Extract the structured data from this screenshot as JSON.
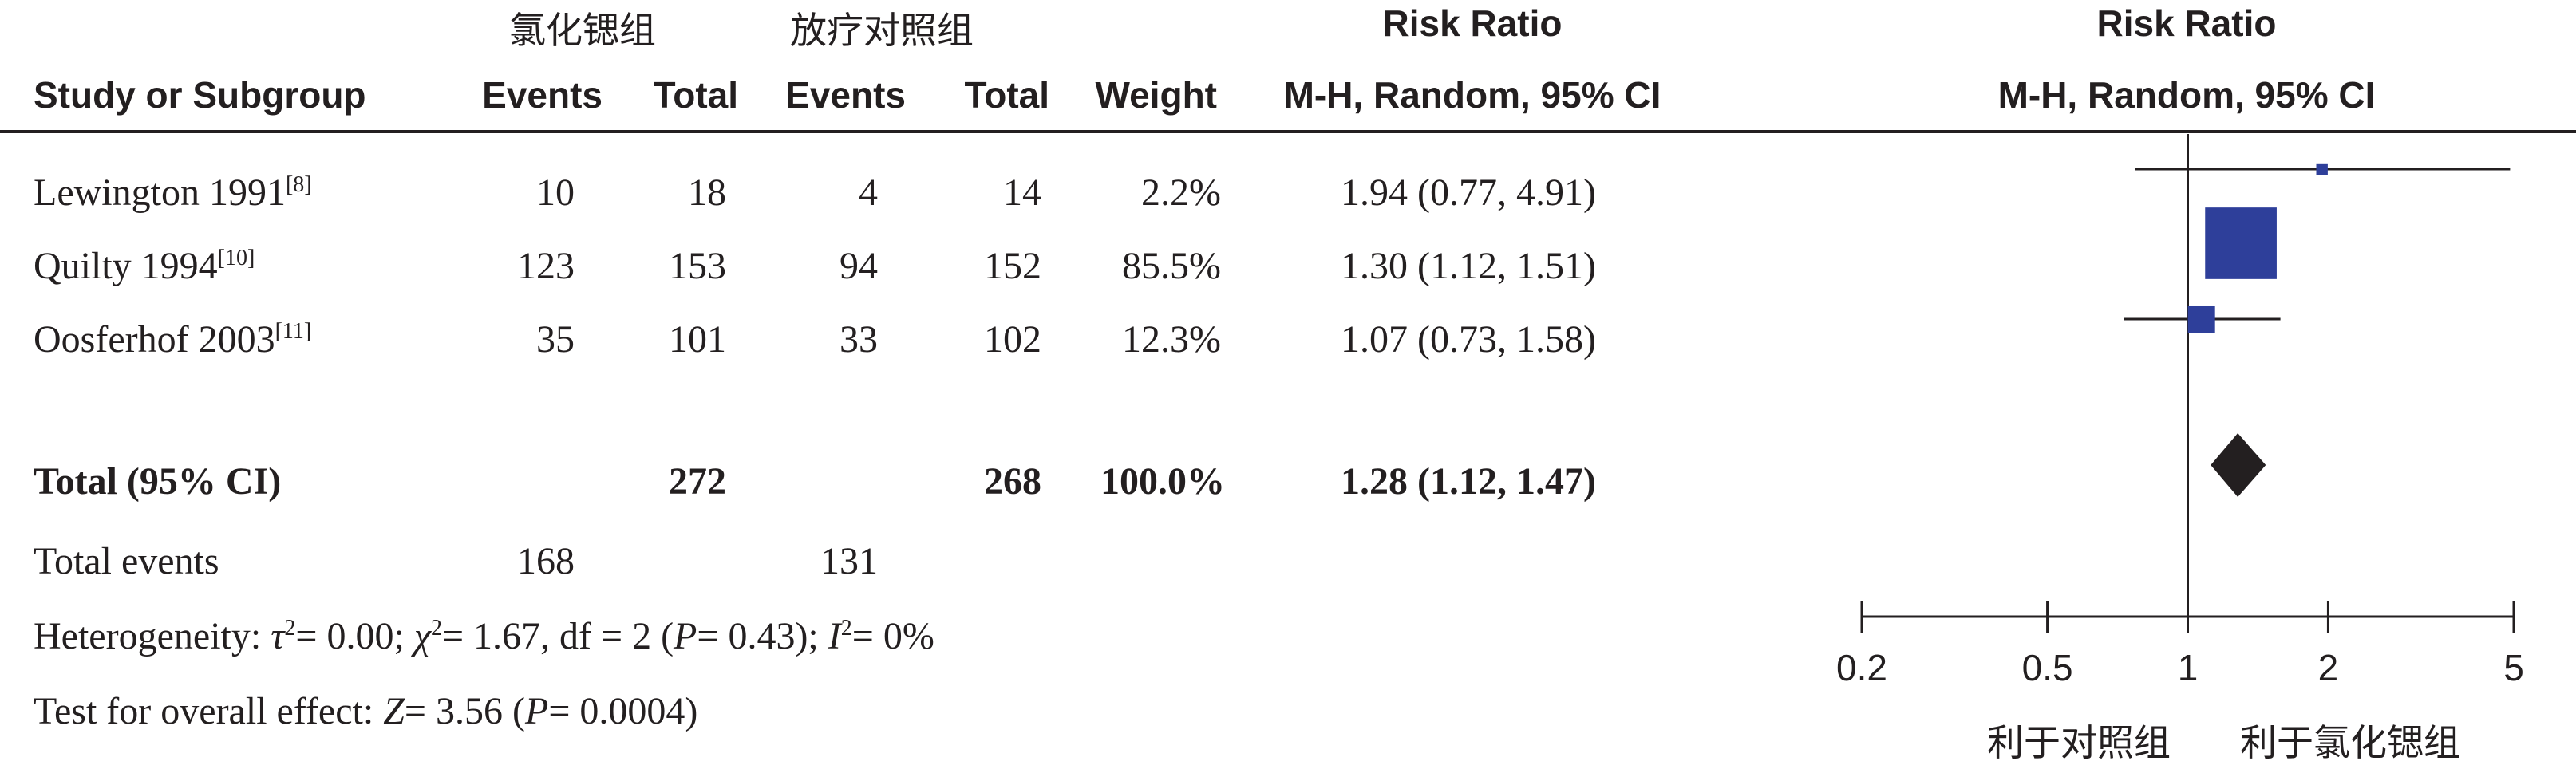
{
  "header": {
    "group1": "氯化锶组",
    "group2": "放疗对照组",
    "study_col": "Study or Subgroup",
    "events1": "Events",
    "total1": "Total",
    "events2": "Events",
    "total2": "Total",
    "weight": "Weight",
    "rr_title": "Risk Ratio",
    "rr_method": "M-H, Random, 95% CI",
    "plot_title": "Risk Ratio",
    "plot_method": "M-H, Random, 95% CI"
  },
  "studies": [
    {
      "name": "Lewington 1991",
      "ref": "[8]",
      "events1": "10",
      "total1": "18",
      "events2": "4",
      "total2": "14",
      "weight": "2.2%",
      "ci_text": "1.94 (0.77, 4.91)"
    },
    {
      "name": "Quilty 1994",
      "ref": "[10]",
      "events1": "123",
      "total1": "153",
      "events2": "94",
      "total2": "152",
      "weight": "85.5%",
      "ci_text": "1.30 (1.12, 1.51)"
    },
    {
      "name": "Oosferhof 2003",
      "ref": "[11]",
      "events1": "35",
      "total1": "101",
      "events2": "33",
      "total2": "102",
      "weight": "12.3%",
      "ci_text": "1.07 (0.73, 1.58)"
    }
  ],
  "total": {
    "label": "Total (95% CI)",
    "total1": "272",
    "total2": "268",
    "weight": "100.0%",
    "ci_text": "1.28 (1.12, 1.47)"
  },
  "total_events": {
    "label": "Total events",
    "events1": "168",
    "events2": "131"
  },
  "heterogeneity": {
    "label": "Heterogeneity: ",
    "tau2_sym": "τ",
    "tau2_val": "= 0.00; ",
    "chi2_sym": "χ",
    "chi2_val": "= 1.67, df = 2 (",
    "p_sym": "P",
    "p_val": "= 0.43); ",
    "i2_sym": "I",
    "i2_val": "= 0%"
  },
  "overall_effect": {
    "label": "Test for overall effect: ",
    "z_sym": "Z",
    "z_val": "= 3.56 (",
    "p_sym": "P",
    "p_val": "= 0.0004)"
  },
  "axis": {
    "favours_left": "利于对照组",
    "favours_right": "利于氯化锶组"
  },
  "colors": {
    "study_marker": "#2e3f9a",
    "diamond": "#231f20",
    "line": "#231f20"
  },
  "chart_data": {
    "type": "forest",
    "scale": "log",
    "xlim": [
      0.2,
      5
    ],
    "ticks": [
      0.2,
      0.5,
      1,
      2,
      5
    ],
    "tick_labels": [
      "0.2",
      "0.5",
      "1",
      "2",
      "5"
    ],
    "studies": [
      {
        "name": "Lewington 1991",
        "rr": 1.94,
        "lower": 0.77,
        "upper": 4.91,
        "weight": 2.2
      },
      {
        "name": "Quilty 1994",
        "rr": 1.3,
        "lower": 1.12,
        "upper": 1.51,
        "weight": 85.5
      },
      {
        "name": "Oosferhof 2003",
        "rr": 1.07,
        "lower": 0.73,
        "upper": 1.58,
        "weight": 12.3
      }
    ],
    "pooled": {
      "rr": 1.28,
      "lower": 1.12,
      "upper": 1.47
    }
  }
}
